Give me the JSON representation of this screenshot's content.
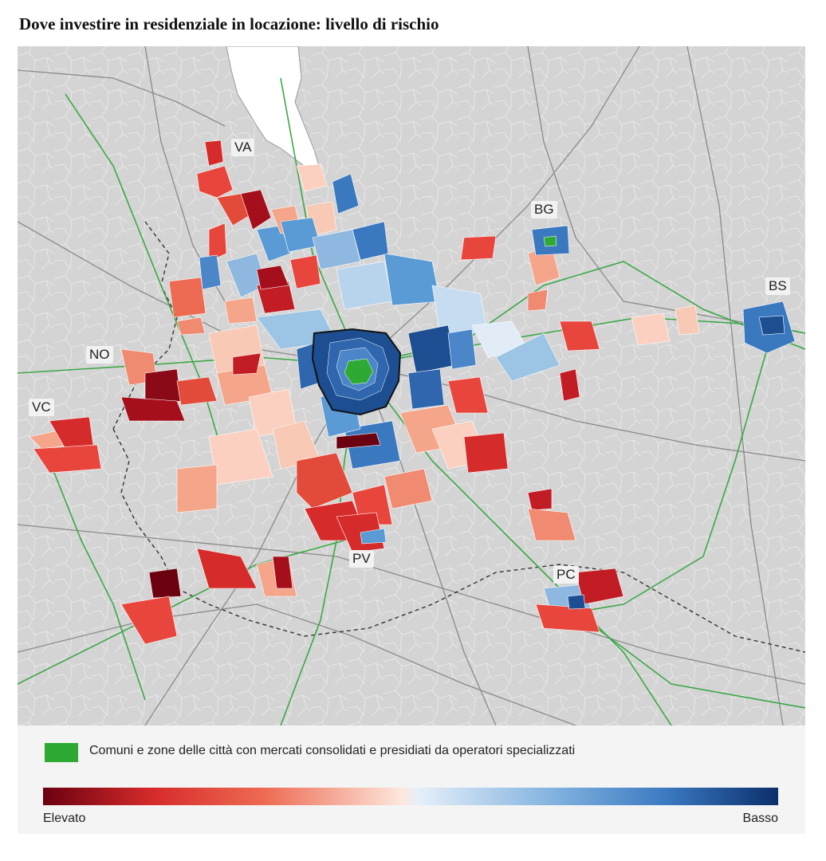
{
  "title": "Dove investire in residenziale in locazione: livello di rischio",
  "cities": {
    "va": "VA",
    "bg": "BG",
    "bs": "BS",
    "no": "NO",
    "vc": "VC",
    "pv": "PV",
    "pc": "PC"
  },
  "legend": {
    "green_label": "Comuni e zone delle città con mercati consolidati e presidiati da operatori specializzati",
    "high_label": "Elevato",
    "low_label": "Basso"
  },
  "colors": {
    "consolidated": "#2eaa34",
    "risk_high": "#6b0010",
    "risk_mid_high": "#e8453c",
    "risk_neutral": "#ffffff",
    "risk_mid_low": "#5a9bd5",
    "risk_low": "#0b2f6b",
    "land": "#d4d4d4",
    "lake": "#ffffff",
    "railway": "#3aa845"
  }
}
